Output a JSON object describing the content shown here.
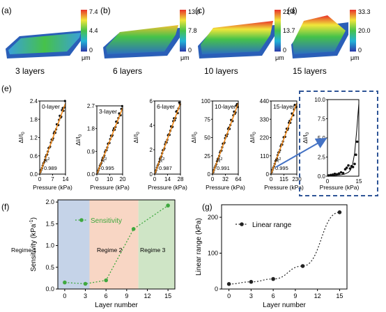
{
  "figure_a": {
    "panels": [
      {
        "label": "(a)",
        "caption": "3 layers",
        "scale": {
          "max": "7.4",
          "mid": "4.4",
          "min": "0",
          "unit": "μm"
        }
      },
      {
        "label": "(b)",
        "caption": "6 layers",
        "scale": {
          "max": "13.0",
          "mid": "7.8",
          "min": "0",
          "unit": "μm"
        }
      },
      {
        "label": "(c)",
        "caption": "10 layers",
        "scale": {
          "max": "22.8",
          "mid": "13.7",
          "min": "0",
          "unit": "μm"
        }
      },
      {
        "label": "(d)",
        "caption": "15 layers",
        "scale": {
          "max": "33.3",
          "mid": "20.0",
          "min": "0",
          "unit": "μm"
        }
      }
    ],
    "colors": {
      "low": "#2c3aa8",
      "mid1": "#22b3d8",
      "mid2": "#46c24a",
      "mid3": "#f0e63a",
      "high": "#e8322a"
    }
  },
  "figure_e": {
    "label": "(e)",
    "ylabel_main": "ΔI/I",
    "ylabel_sub": "0",
    "xlabel": "Pressure (kPa)",
    "r2_label": "R",
    "r2_sup": "2",
    "panels": [
      {
        "name": "0-layer",
        "xticks": [
          "0",
          "7",
          "14"
        ],
        "yticks": [
          "0.0",
          "0.6",
          "1.2",
          "1.8",
          "2.4"
        ],
        "r2": "0.989",
        "xmax": 14,
        "ymax": 2.4
      },
      {
        "name": "3-layer",
        "xticks": [
          "0",
          "10",
          "20"
        ],
        "yticks": [
          "0.0",
          "0.9",
          "1.8",
          "2.7"
        ],
        "r2": "0.995",
        "xmax": 20,
        "ymax": 2.7
      },
      {
        "name": "6-layer",
        "xticks": [
          "0",
          "14",
          "28"
        ],
        "yticks": [
          "0",
          "2",
          "4",
          "6"
        ],
        "r2": "0.987",
        "xmax": 28,
        "ymax": 6
      },
      {
        "name": "10-layer",
        "xticks": [
          "0",
          "32",
          "64"
        ],
        "yticks": [
          "0",
          "25",
          "50",
          "75",
          "100"
        ],
        "r2": "0.991",
        "xmax": 64,
        "ymax": 100
      },
      {
        "name": "15-layer",
        "xticks": [
          "0",
          "115",
          "230"
        ],
        "yticks": [
          "0",
          "110",
          "220",
          "330",
          "440"
        ],
        "r2": "0.995",
        "xmax": 230,
        "ymax": 440
      }
    ],
    "inset": {
      "xticks": [
        "0",
        "15"
      ],
      "yticks": [
        "0.0",
        "2.5",
        "5.0",
        "7.5",
        "10.0"
      ],
      "xmax": 15,
      "ymax": 10,
      "points": [
        [
          0.5,
          0.1
        ],
        [
          1.5,
          0.15
        ],
        [
          2.5,
          0.2
        ],
        [
          3.5,
          0.3
        ],
        [
          4.5,
          0.25
        ],
        [
          5.5,
          0.35
        ],
        [
          6.5,
          0.5
        ],
        [
          7.5,
          0.4
        ],
        [
          8.5,
          0.9
        ],
        [
          9.2,
          1.1
        ],
        [
          10,
          1.4
        ],
        [
          10.8,
          1.0
        ],
        [
          11.5,
          1.3
        ],
        [
          12.2,
          1.2
        ],
        [
          13,
          1.6
        ],
        [
          13.6,
          2.8
        ],
        [
          14.2,
          4.5
        ]
      ],
      "curve": [
        [
          0,
          0.05
        ],
        [
          4,
          0.1
        ],
        [
          8,
          0.25
        ],
        [
          10,
          0.5
        ],
        [
          11,
          0.8
        ],
        [
          12,
          1.5
        ],
        [
          13,
          3
        ],
        [
          14,
          6
        ],
        [
          15,
          9.5
        ]
      ]
    },
    "colors": {
      "data": "#111111",
      "fit": "#f08a1c",
      "inset_box": "#2f5597",
      "arrow": "#4472c4"
    }
  },
  "figure_f": {
    "label": "(f)",
    "chart_data": {
      "type": "line",
      "x": [
        0,
        3,
        6,
        10,
        15
      ],
      "y": [
        0.15,
        0.12,
        0.2,
        1.38,
        1.92
      ],
      "xlabel": "Layer number",
      "ylabel_main": "Sensitivity (kPa",
      "ylabel_sup": "-1",
      "ylabel_end": ")",
      "xticks": [
        "0",
        "3",
        "6",
        "9",
        "12",
        "15"
      ],
      "yticks": [
        "0.0",
        "0.5",
        "1.0",
        "1.5",
        "2.0"
      ],
      "xlim": [
        -1,
        16
      ],
      "ylim": [
        0,
        2.05
      ],
      "legend": "Sensitivity",
      "regions": [
        {
          "name": "Regime 1",
          "x0": -1,
          "x1": 3.6,
          "color": "#c5d3e8"
        },
        {
          "name": "Regime 2",
          "x0": 3.6,
          "x1": 10.7,
          "color": "#f8d6c4"
        },
        {
          "name": "Regime 3",
          "x0": 10.7,
          "x1": 16,
          "color": "#cfe5c6"
        }
      ],
      "line_color": "#3fa83f"
    }
  },
  "figure_g": {
    "label": "(g)",
    "chart_data": {
      "type": "line",
      "x": [
        0,
        3,
        6,
        10,
        15
      ],
      "y": [
        14,
        20,
        28,
        64,
        214
      ],
      "xlabel": "Layer number",
      "ylabel": "Linear range (kPa)",
      "xticks": [
        "0",
        "3",
        "6",
        "9",
        "12",
        "15"
      ],
      "yticks": [
        "0",
        "100",
        "200"
      ],
      "xlim": [
        -1,
        16
      ],
      "ylim": [
        0,
        235
      ],
      "legend": "Linear range",
      "line_color": "#222222"
    }
  }
}
